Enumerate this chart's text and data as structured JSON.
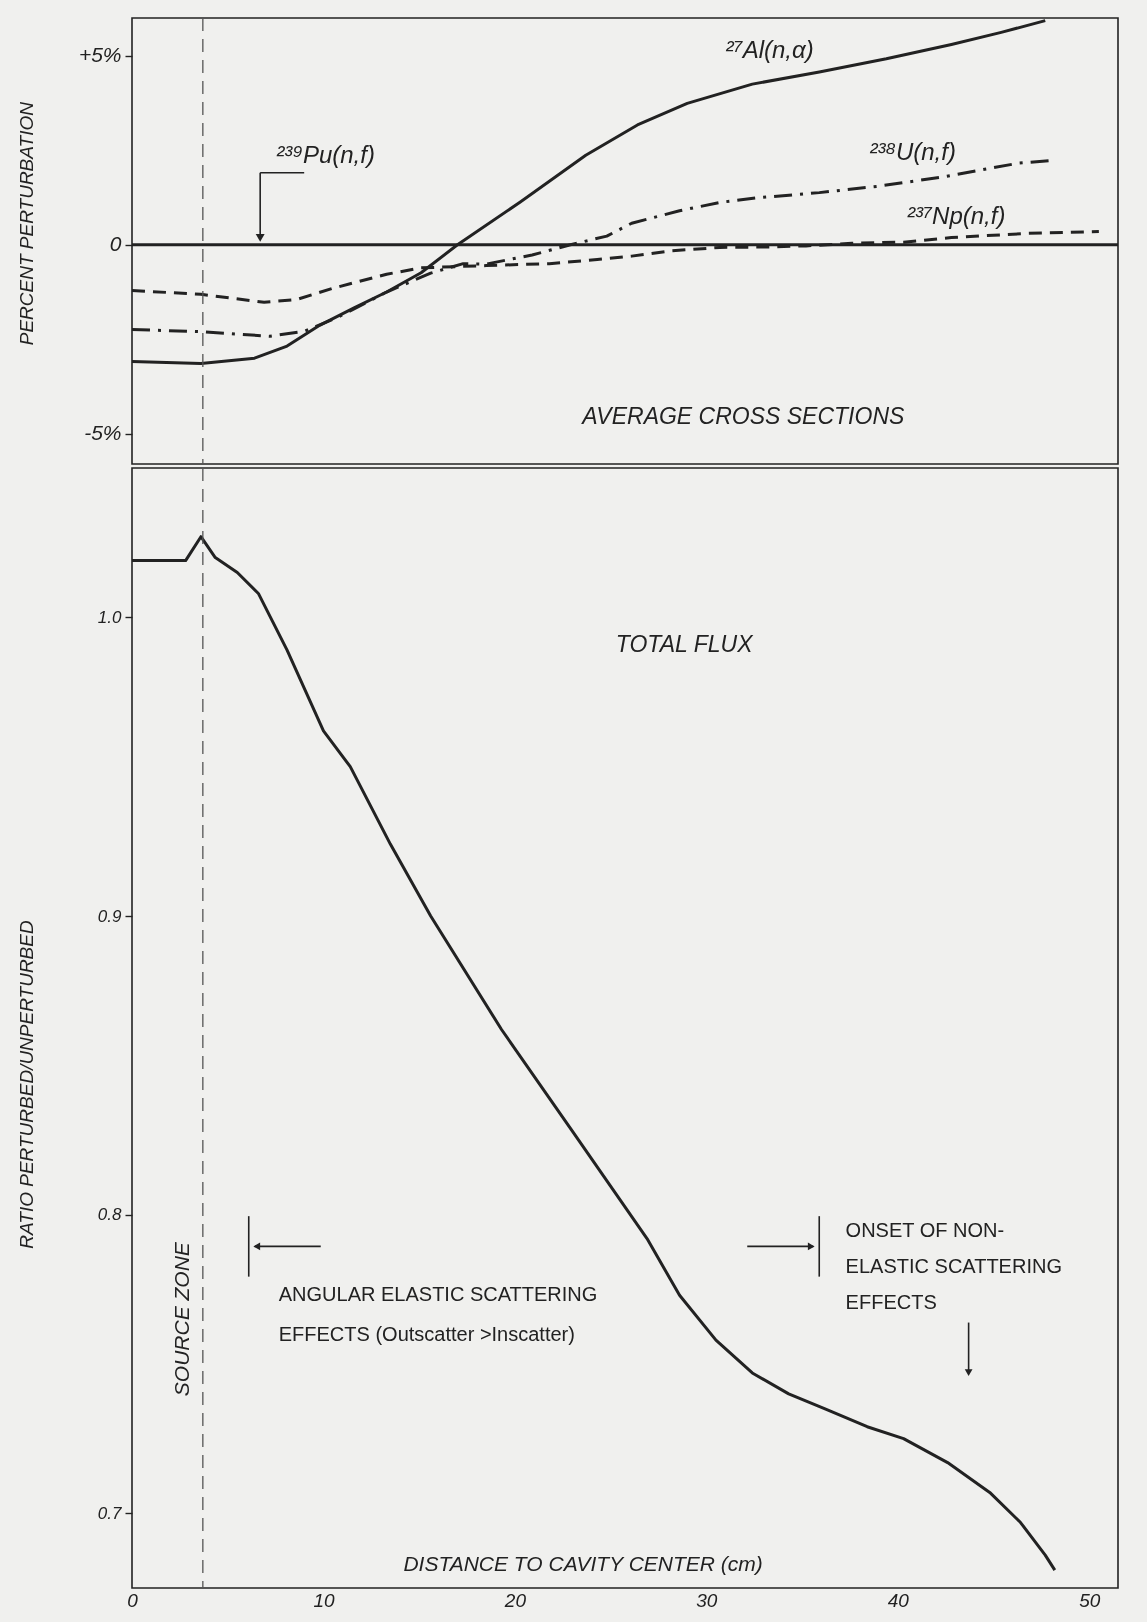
{
  "chart_data": [
    {
      "type": "line",
      "title": "AVERAGE CROSS SECTIONS",
      "ylabel": "PERCENT PERTURBATION",
      "xlim": [
        0,
        51.5
      ],
      "ylim": [
        -5.8,
        6.0
      ],
      "yticks": [
        {
          "value": 5,
          "label": "+5%"
        },
        0,
        {
          "value": -5,
          "label": "-5%"
        }
      ],
      "tick_labels": "y",
      "ref_lines": [
        {
          "axis": "x",
          "value": 3.7,
          "line_style": "dashed",
          "color": "#555555"
        }
      ],
      "series": [
        {
          "name": "²⁷Al(n,α)",
          "color": "#222222",
          "line_style": "solid",
          "x": [
            0,
            3.6,
            6.4,
            8.1,
            9.8,
            11.6,
            13.3,
            15.1,
            17.0,
            20.3,
            23.7,
            26.4,
            29.0,
            32.4,
            35.9,
            39.4,
            42.8,
            45.4,
            47.7
          ],
          "values": [
            -3.09,
            -3.14,
            -3.0,
            -2.68,
            -2.13,
            -1.67,
            -1.25,
            -0.74,
            0,
            1.14,
            2.37,
            3.17,
            3.74,
            4.25,
            4.57,
            4.92,
            5.3,
            5.62,
            5.93
          ]
        },
        {
          "name": "²³⁹Pu(n,f)",
          "color": "#222222",
          "line_style": "solid",
          "x": [
            0,
            51.5
          ],
          "values": [
            0,
            0
          ]
        },
        {
          "name": "²³⁸U(n,f)",
          "color": "#222222",
          "line_style": "dashdot",
          "x": [
            0,
            3.6,
            7.2,
            9.0,
            10.7,
            13.3,
            15.6,
            17.3,
            18.5,
            20.9,
            22.9,
            24.8,
            26.1,
            28.6,
            30.7,
            32.6,
            35.9,
            39.0,
            42.3,
            46.3,
            48.0
          ],
          "values": [
            -2.24,
            -2.3,
            -2.42,
            -2.29,
            -1.93,
            -1.25,
            -0.75,
            -0.5,
            -0.51,
            -0.27,
            0,
            0.23,
            0.57,
            0.9,
            1.12,
            1.24,
            1.38,
            1.55,
            1.79,
            2.16,
            2.23
          ]
        },
        {
          "name": "²³⁷Np(n,f)",
          "color": "#222222",
          "line_style": "dashed",
          "x": [
            0,
            3.6,
            6.9,
            8.6,
            10.5,
            13.3,
            15.1,
            18.5,
            21.8,
            24.3,
            26.1,
            28.2,
            30.7,
            33.0,
            35.2,
            37.6,
            40.3,
            42.8,
            46.7,
            50.5
          ],
          "values": [
            -1.21,
            -1.31,
            -1.52,
            -1.45,
            -1.15,
            -0.78,
            -0.61,
            -0.55,
            -0.5,
            -0.39,
            -0.3,
            -0.16,
            -0.07,
            -0.06,
            -0.03,
            0.04,
            0.07,
            0.19,
            0.3,
            0.35
          ]
        }
      ]
    },
    {
      "type": "line",
      "title": "TOTAL FLUX",
      "xlabel": "DISTANCE TO CAVITY CENTER (cm)",
      "ylabel": "RATIO PERTURBED/UNPERTURBED",
      "xlim": [
        0,
        51.5
      ],
      "xticks": [
        0,
        10,
        20,
        30,
        40,
        50
      ],
      "ylim": [
        0.675,
        1.05
      ],
      "yticks": [
        {
          "value": 1,
          "label": "1.0"
        },
        0.9,
        0.8,
        0.7
      ],
      "ref_lines": [
        {
          "axis": "x",
          "value": 3.7,
          "label": "SOURCE ZONE",
          "line_style": "dashed",
          "color": "#555555"
        }
      ],
      "annotations": [
        "ANGULAR ELASTIC SCATTERING EFFECTS (Outscatter >Inscatter)",
        "ONSET OF NON-ELASTIC SCATTERING EFFECTS"
      ],
      "series": [
        {
          "color": "#222222",
          "x": [
            0,
            2.8,
            3.6,
            4.35,
            5.5,
            6.6,
            8.1,
            10.0,
            11.4,
            13.5,
            15.6,
            19.3,
            23.0,
            26.9,
            28.6,
            30.5,
            32.4,
            34.3,
            36.2,
            38.4,
            40.3,
            42.6,
            44.8,
            46.4,
            47.7,
            48.2
          ],
          "values": [
            1.019,
            1.019,
            1.027,
            1.02,
            1.015,
            1.008,
            0.989,
            0.962,
            0.95,
            0.924,
            0.9,
            0.862,
            0.828,
            0.792,
            0.773,
            0.758,
            0.747,
            0.74,
            0.735,
            0.729,
            0.725,
            0.717,
            0.707,
            0.697,
            0.686,
            0.681
          ]
        }
      ]
    }
  ]
}
